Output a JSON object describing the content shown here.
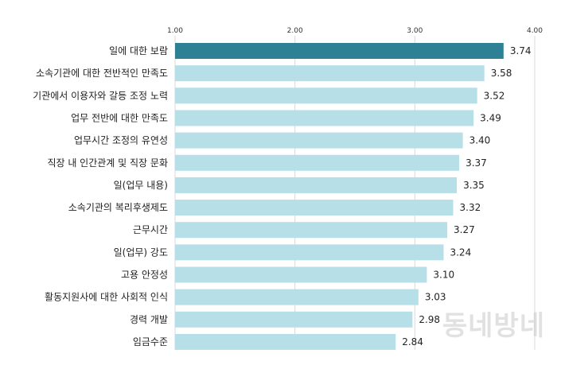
{
  "chart_data": {
    "type": "bar",
    "orientation": "horizontal",
    "categories": [
      "일에 대한 보람",
      "소속기관에 대한 전반적인 만족도",
      "기관에서 이용자와 갈등 조정 노력",
      "업무 전반에 대한 만족도",
      "업무시간 조정의 유연성",
      "직장 내 인간관계 및 직장 문화",
      "일(업무 내용)",
      "소속기관의 복리후생제도",
      "근무시간",
      "일(업무) 강도",
      "고용 안정성",
      "활동지원사에 대한 사회적 인식",
      "경력 개발",
      "임금수준"
    ],
    "values": [
      3.74,
      3.58,
      3.52,
      3.49,
      3.4,
      3.37,
      3.35,
      3.32,
      3.27,
      3.24,
      3.1,
      3.03,
      2.98,
      2.84
    ],
    "value_labels": [
      "3.74",
      "3.58",
      "3.52",
      "3.49",
      "3.40",
      "3.37",
      "3.35",
      "3.32",
      "3.27",
      "3.24",
      "3.10",
      "3.03",
      "2.98",
      "2.84"
    ],
    "xlim": [
      1,
      4
    ],
    "xticks": [
      "1.00",
      "2.00",
      "3.00",
      "4.00"
    ],
    "tick_values": [
      1,
      2,
      3,
      4
    ],
    "grid": true,
    "highlight_color": "#2e8095",
    "bar_color": "#b7dfe8"
  },
  "watermark": "동네방네"
}
